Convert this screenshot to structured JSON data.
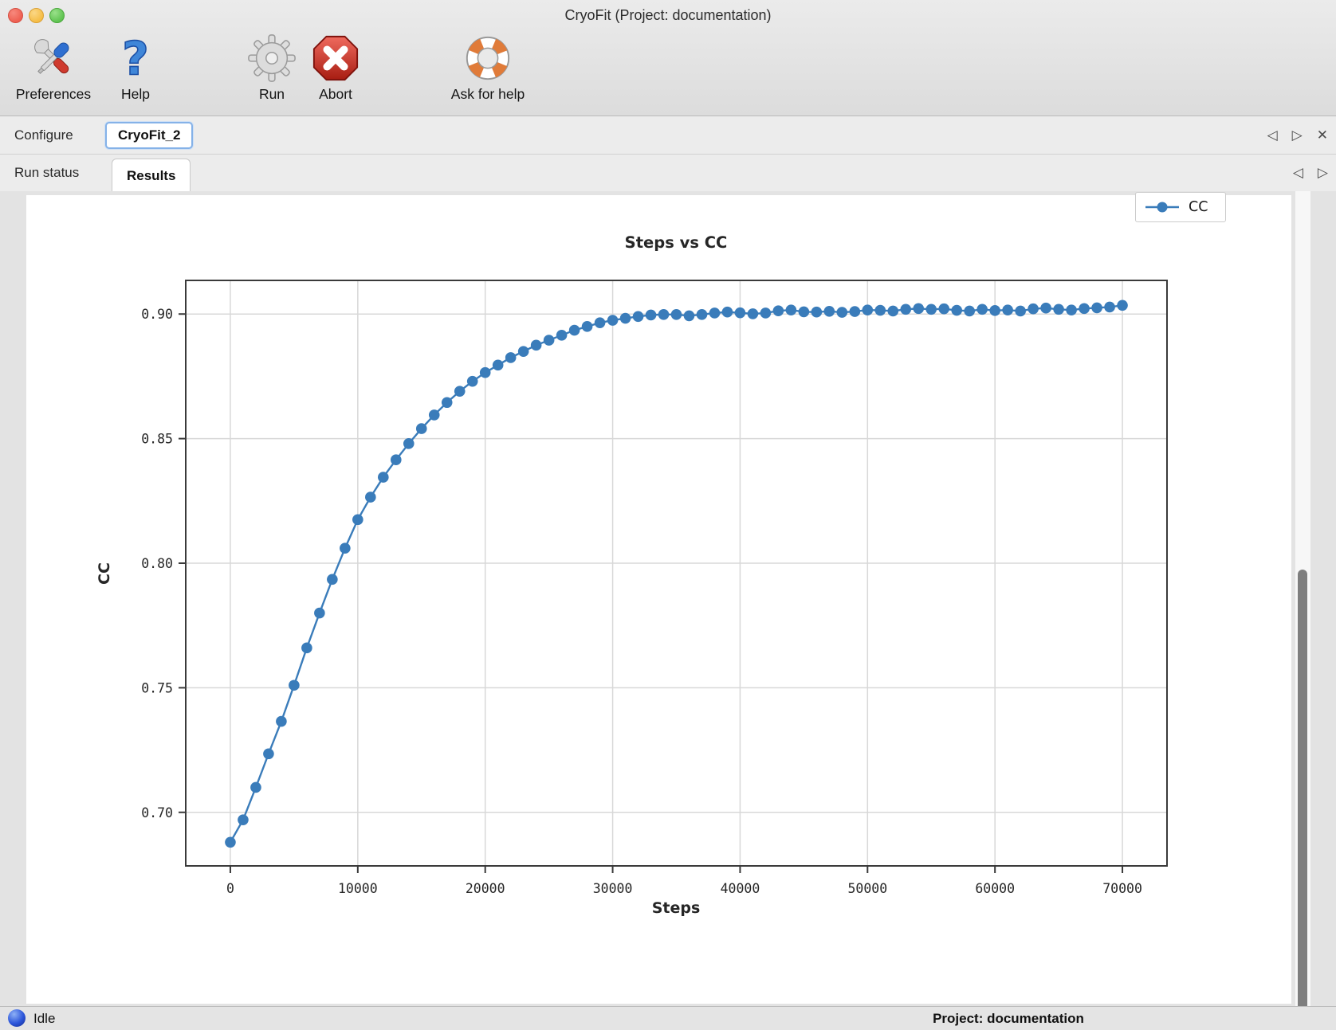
{
  "window": {
    "title": "CryoFit (Project: documentation)"
  },
  "toolbar": {
    "items": [
      {
        "label": "Preferences",
        "icon": "tools-icon"
      },
      {
        "label": "Help",
        "icon": "question-mark-icon"
      },
      {
        "label": "Run",
        "icon": "gear-icon"
      },
      {
        "label": "Abort",
        "icon": "abort-octagon-icon"
      },
      {
        "label": "Ask for help",
        "icon": "lifebuoy-icon"
      }
    ]
  },
  "tabs": {
    "document_tabs": [
      {
        "label": "Configure",
        "selected": false
      },
      {
        "label": "CryoFit_2",
        "selected": true
      }
    ],
    "view_tabs": [
      {
        "label": "Run status",
        "selected": false
      },
      {
        "label": "Results",
        "selected": true
      }
    ],
    "nav": {
      "prev": "◁",
      "next": "▷",
      "close": "✕"
    }
  },
  "status_bar": {
    "state": "Idle",
    "project": "Project: documentation"
  },
  "colors": {
    "series_blue": "#3a7cba",
    "grid": "#d8d8d8",
    "spine": "#3a3a3a",
    "abort_red": "#c1281d",
    "help_blue": "#3f86d8",
    "buoy_orange": "#e07b39"
  },
  "chart_data": {
    "type": "line",
    "title": "Steps vs CC",
    "xlabel": "Steps",
    "ylabel": "CC",
    "grid": true,
    "legend": {
      "entries": [
        "CC"
      ],
      "position": "top-right"
    },
    "xlim": [
      -3500,
      73500
    ],
    "ylim": [
      0.6785,
      0.9135
    ],
    "xticks": [
      0,
      10000,
      20000,
      30000,
      40000,
      50000,
      60000,
      70000
    ],
    "xtick_labels": [
      "0",
      "10000",
      "20000",
      "30000",
      "40000",
      "50000",
      "60000",
      "70000"
    ],
    "yticks": [
      0.7,
      0.75,
      0.8,
      0.85,
      0.9
    ],
    "ytick_labels": [
      "0.70",
      "0.75",
      "0.80",
      "0.85",
      "0.90"
    ],
    "series": [
      {
        "name": "CC",
        "color": "#3a7cba",
        "marker": "circle",
        "x_start": 0,
        "x_step": 1000,
        "values": [
          0.688,
          0.697,
          0.71,
          0.7235,
          0.7365,
          0.751,
          0.766,
          0.78,
          0.7935,
          0.806,
          0.8175,
          0.8265,
          0.8345,
          0.8415,
          0.848,
          0.854,
          0.8595,
          0.8645,
          0.869,
          0.873,
          0.8765,
          0.8795,
          0.8825,
          0.885,
          0.8875,
          0.8895,
          0.8915,
          0.8935,
          0.895,
          0.8965,
          0.8975,
          0.8983,
          0.899,
          0.8996,
          0.8998,
          0.8998,
          0.8993,
          0.8998,
          0.9004,
          0.9008,
          0.9005,
          0.9001,
          0.9004,
          0.9013,
          0.9016,
          0.9009,
          0.9008,
          0.9011,
          0.9007,
          0.901,
          0.9016,
          0.9015,
          0.9012,
          0.9019,
          0.9022,
          0.9019,
          0.9021,
          0.9015,
          0.9012,
          0.9019,
          0.9014,
          0.9016,
          0.9012,
          0.9021,
          0.9024,
          0.9019,
          0.9016,
          0.9022,
          0.9025,
          0.9028,
          0.9035
        ]
      }
    ]
  }
}
